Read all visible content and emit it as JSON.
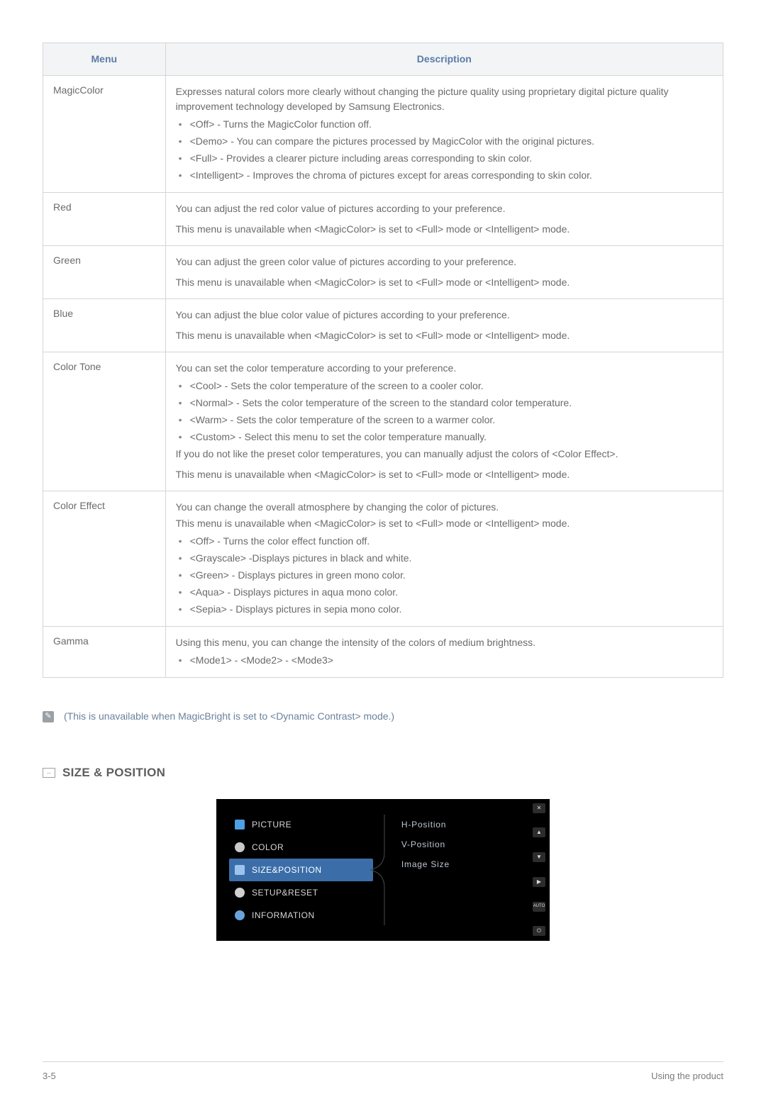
{
  "table": {
    "header_menu": "Menu",
    "header_desc": "Description",
    "rows": [
      {
        "name": "MagicColor",
        "intro": "Expresses natural colors more clearly without changing the picture quality using proprietary digital picture quality improvement technology developed by Samsung Electronics.",
        "bullets": [
          "<Off> - Turns the MagicColor function off.",
          "<Demo> - You can compare the pictures processed by MagicColor with the original pictures.",
          "<Full> - Provides a clearer picture including areas corresponding to skin color.",
          "<Intelligent> - Improves the chroma of pictures except for areas corresponding to skin color."
        ]
      },
      {
        "name": "Red",
        "intro": "You can adjust the red color value of pictures according to your preference.",
        "tail": "This menu is unavailable when <MagicColor> is set to <Full> mode or <Intelligent> mode."
      },
      {
        "name": "Green",
        "intro": "You can adjust the green color value of pictures according to your preference.",
        "tail": "This menu is unavailable when <MagicColor> is set to <Full> mode or <Intelligent> mode."
      },
      {
        "name": "Blue",
        "intro": "You can adjust the blue color value of pictures according to your preference.",
        "tail": "This menu is unavailable when <MagicColor> is set to <Full> mode or <Intelligent> mode."
      },
      {
        "name": "Color Tone",
        "intro": "You can set the color temperature according to your preference.",
        "bullets": [
          "<Cool> - Sets the color temperature of the screen to a cooler color.",
          "<Normal> - Sets the color temperature of the screen to the standard color temperature.",
          "<Warm> - Sets the color temperature of the screen to a warmer color.",
          "<Custom> - Select this menu to set the color temperature manually."
        ],
        "after_bullets": "If you do not like the preset color temperatures, you can manually adjust the colors of <Color Effect>.",
        "tail": "This menu is unavailable when <MagicColor> is set to <Full> mode or <Intelligent> mode."
      },
      {
        "name": "Color Effect",
        "intro": "You can change the overall atmosphere by changing the color of pictures.",
        "pre_bullets": "This menu is unavailable when <MagicColor> is set to <Full> mode or <Intelligent> mode.",
        "bullets": [
          "<Off> - Turns the color effect function off.",
          "<Grayscale> -Displays pictures in black and white.",
          "<Green> - Displays pictures in green mono color.",
          "<Aqua> - Displays pictures in aqua mono color.",
          "<Sepia> - Displays pictures in sepia mono color."
        ]
      },
      {
        "name": "Gamma",
        "intro": "Using this menu, you can change the intensity of the colors of medium brightness.",
        "bullets": [
          "<Mode1> - <Mode2> - <Mode3>"
        ]
      }
    ]
  },
  "note": "(This is unavailable when MagicBright is set to <Dynamic Contrast> mode.)",
  "section_title": "SIZE & POSITION",
  "osd": {
    "left": {
      "picture": "PICTURE",
      "color": "COLOR",
      "sizepos": "SIZE&POSITION",
      "setup": "SETUP&RESET",
      "info": "INFORMATION"
    },
    "right": {
      "hpos": "H-Position",
      "vpos": "V-Position",
      "imgsize": "Image Size"
    },
    "side": {
      "close": "✕",
      "up": "▲",
      "down": "▼",
      "enter": "▶",
      "auto": "AUTO",
      "power": "⏻"
    }
  },
  "footer": {
    "left": "3-5",
    "right": "Using the product"
  }
}
